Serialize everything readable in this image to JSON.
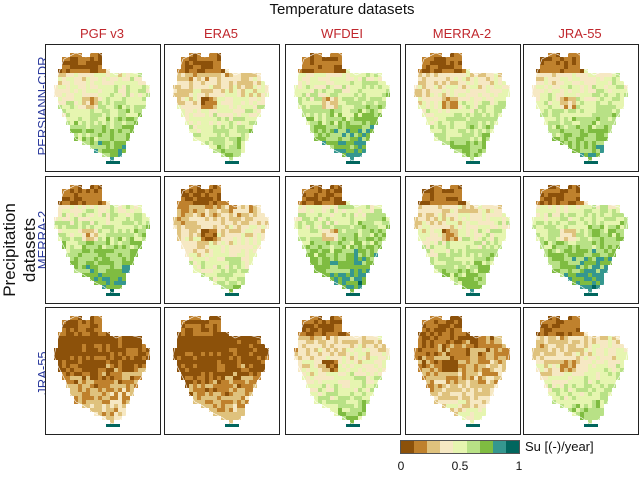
{
  "super_title": "Temperature datasets",
  "y_super_title": "Precipitation datasets",
  "columns": [
    "PGF v3",
    "ERA5",
    "WFDEI",
    "MERRA-2",
    "JRA-55"
  ],
  "rows": [
    "PERSIANN-CDR",
    "MERRA-2",
    "JRA-55"
  ],
  "colorbar": {
    "label": "Su [(-)/year]",
    "ticks": [
      "0",
      "0.5",
      "1"
    ],
    "colors": [
      "#8c510a",
      "#bf812d",
      "#dfc27d",
      "#f6e8c3",
      "#e6f5b0",
      "#b8e186",
      "#7fbc41",
      "#35978f",
      "#01665e"
    ],
    "range": [
      0,
      1
    ]
  },
  "panel_means": [
    [
      0.55,
      0.45,
      0.6,
      0.5,
      0.55
    ],
    [
      0.6,
      0.4,
      0.62,
      0.5,
      0.62
    ],
    [
      0.15,
      0.12,
      0.45,
      0.25,
      0.45
    ]
  ]
}
